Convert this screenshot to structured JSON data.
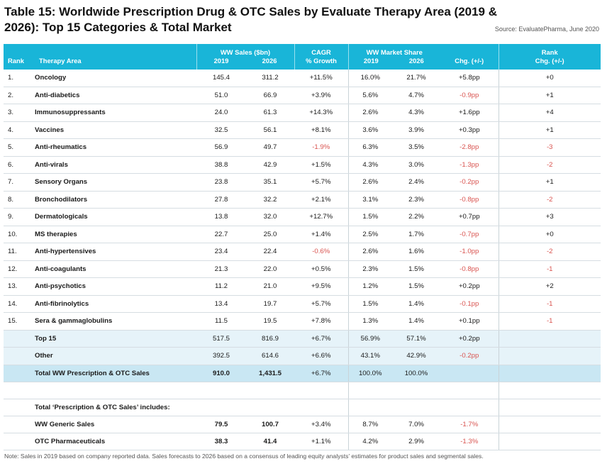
{
  "title": "Table 15: Worldwide Prescription Drug & OTC Sales by Evaluate Therapy Area (2019 & 2026): Top 15 Categories & Total Market",
  "source": "Source: EvaluatePharma, June 2020",
  "headers": {
    "rank": "Rank",
    "area": "Therapy Area",
    "sales": "WW Sales ($bn)",
    "y2019": "2019",
    "y2026": "2026",
    "cagr1": "CAGR",
    "cagr2": "% Growth",
    "share": "WW Market Share",
    "chg": "Chg. (+/-)",
    "rankchg1": "Rank",
    "rankchg2": "Chg. (+/-)"
  },
  "rows": [
    {
      "rank": "1.",
      "area": "Oncology",
      "s2019": "145.4",
      "s2026": "311.2",
      "cagr": "+11.5%",
      "m2019": "16.0%",
      "m2026": "21.7%",
      "chg": "+5.8pp",
      "rchg": "+0"
    },
    {
      "rank": "2.",
      "area": "Anti-diabetics",
      "s2019": "51.0",
      "s2026": "66.9",
      "cagr": "+3.9%",
      "m2019": "5.6%",
      "m2026": "4.7%",
      "chg": "-0.9pp",
      "rchg": "+1"
    },
    {
      "rank": "3.",
      "area": "Immunosuppressants",
      "s2019": "24.0",
      "s2026": "61.3",
      "cagr": "+14.3%",
      "m2019": "2.6%",
      "m2026": "4.3%",
      "chg": "+1.6pp",
      "rchg": "+4"
    },
    {
      "rank": "4.",
      "area": "Vaccines",
      "s2019": "32.5",
      "s2026": "56.1",
      "cagr": "+8.1%",
      "m2019": "3.6%",
      "m2026": "3.9%",
      "chg": "+0.3pp",
      "rchg": "+1"
    },
    {
      "rank": "5.",
      "area": "Anti-rheumatics",
      "s2019": "56.9",
      "s2026": "49.7",
      "cagr": "-1.9%",
      "m2019": "6.3%",
      "m2026": "3.5%",
      "chg": "-2.8pp",
      "rchg": "-3"
    },
    {
      "rank": "6.",
      "area": "Anti-virals",
      "s2019": "38.8",
      "s2026": "42.9",
      "cagr": "+1.5%",
      "m2019": "4.3%",
      "m2026": "3.0%",
      "chg": "-1.3pp",
      "rchg": "-2"
    },
    {
      "rank": "7.",
      "area": "Sensory Organs",
      "s2019": "23.8",
      "s2026": "35.1",
      "cagr": "+5.7%",
      "m2019": "2.6%",
      "m2026": "2.4%",
      "chg": "-0.2pp",
      "rchg": "+1"
    },
    {
      "rank": "8.",
      "area": "Bronchodilators",
      "s2019": "27.8",
      "s2026": "32.2",
      "cagr": "+2.1%",
      "m2019": "3.1%",
      "m2026": "2.3%",
      "chg": "-0.8pp",
      "rchg": "-2"
    },
    {
      "rank": "9.",
      "area": "Dermatologicals",
      "s2019": "13.8",
      "s2026": "32.0",
      "cagr": "+12.7%",
      "m2019": "1.5%",
      "m2026": "2.2%",
      "chg": "+0.7pp",
      "rchg": "+3"
    },
    {
      "rank": "10.",
      "area": "MS therapies",
      "s2019": "22.7",
      "s2026": "25.0",
      "cagr": "+1.4%",
      "m2019": "2.5%",
      "m2026": "1.7%",
      "chg": "-0.7pp",
      "rchg": "+0"
    },
    {
      "rank": "11.",
      "area": "Anti-hypertensives",
      "s2019": "23.4",
      "s2026": "22.4",
      "cagr": "-0.6%",
      "m2019": "2.6%",
      "m2026": "1.6%",
      "chg": "-1.0pp",
      "rchg": "-2"
    },
    {
      "rank": "12.",
      "area": "Anti-coagulants",
      "s2019": "21.3",
      "s2026": "22.0",
      "cagr": "+0.5%",
      "m2019": "2.3%",
      "m2026": "1.5%",
      "chg": "-0.8pp",
      "rchg": "-1"
    },
    {
      "rank": "13.",
      "area": "Anti-psychotics",
      "s2019": "11.2",
      "s2026": "21.0",
      "cagr": "+9.5%",
      "m2019": "1.2%",
      "m2026": "1.5%",
      "chg": "+0.2pp",
      "rchg": "+2"
    },
    {
      "rank": "14.",
      "area": "Anti-fibrinolytics",
      "s2019": "13.4",
      "s2026": "19.7",
      "cagr": "+5.7%",
      "m2019": "1.5%",
      "m2026": "1.4%",
      "chg": "-0.1pp",
      "rchg": "-1"
    },
    {
      "rank": "15.",
      "area": "Sera & gammaglobulins",
      "s2019": "11.5",
      "s2026": "19.5",
      "cagr": "+7.8%",
      "m2019": "1.3%",
      "m2026": "1.4%",
      "chg": "+0.1pp",
      "rchg": "-1"
    }
  ],
  "top15": {
    "area": "Top 15",
    "s2019": "517.5",
    "s2026": "816.9",
    "cagr": "+6.7%",
    "m2019": "56.9%",
    "m2026": "57.1%",
    "chg": "+0.2pp"
  },
  "other": {
    "area": "Other",
    "s2019": "392.5",
    "s2026": "614.6",
    "cagr": "+6.6%",
    "m2019": "43.1%",
    "m2026": "42.9%",
    "chg": "-0.2pp"
  },
  "total": {
    "area": "Total WW Prescription & OTC Sales",
    "s2019": "910.0",
    "s2026": "1,431.5",
    "cagr": "+6.7%",
    "m2019": "100.0%",
    "m2026": "100.0%"
  },
  "includes_label": "Total ‘Prescription & OTC Sales’ includes:",
  "generic": {
    "area": "WW Generic Sales",
    "s2019": "79.5",
    "s2026": "100.7",
    "cagr": "+3.4%",
    "m2019": "8.7%",
    "m2026": "7.0%",
    "chg": "-1.7%"
  },
  "otc": {
    "area": "OTC Pharmaceuticals",
    "s2019": "38.3",
    "s2026": "41.4",
    "cagr": "+1.1%",
    "m2019": "4.2%",
    "m2026": "2.9%",
    "chg": "-1.3%"
  },
  "note": "Note: Sales in 2019 based on company reported data. Sales forecasts to 2026 based on a consensus of leading equity analysts’ estimates for product sales and segmental sales."
}
